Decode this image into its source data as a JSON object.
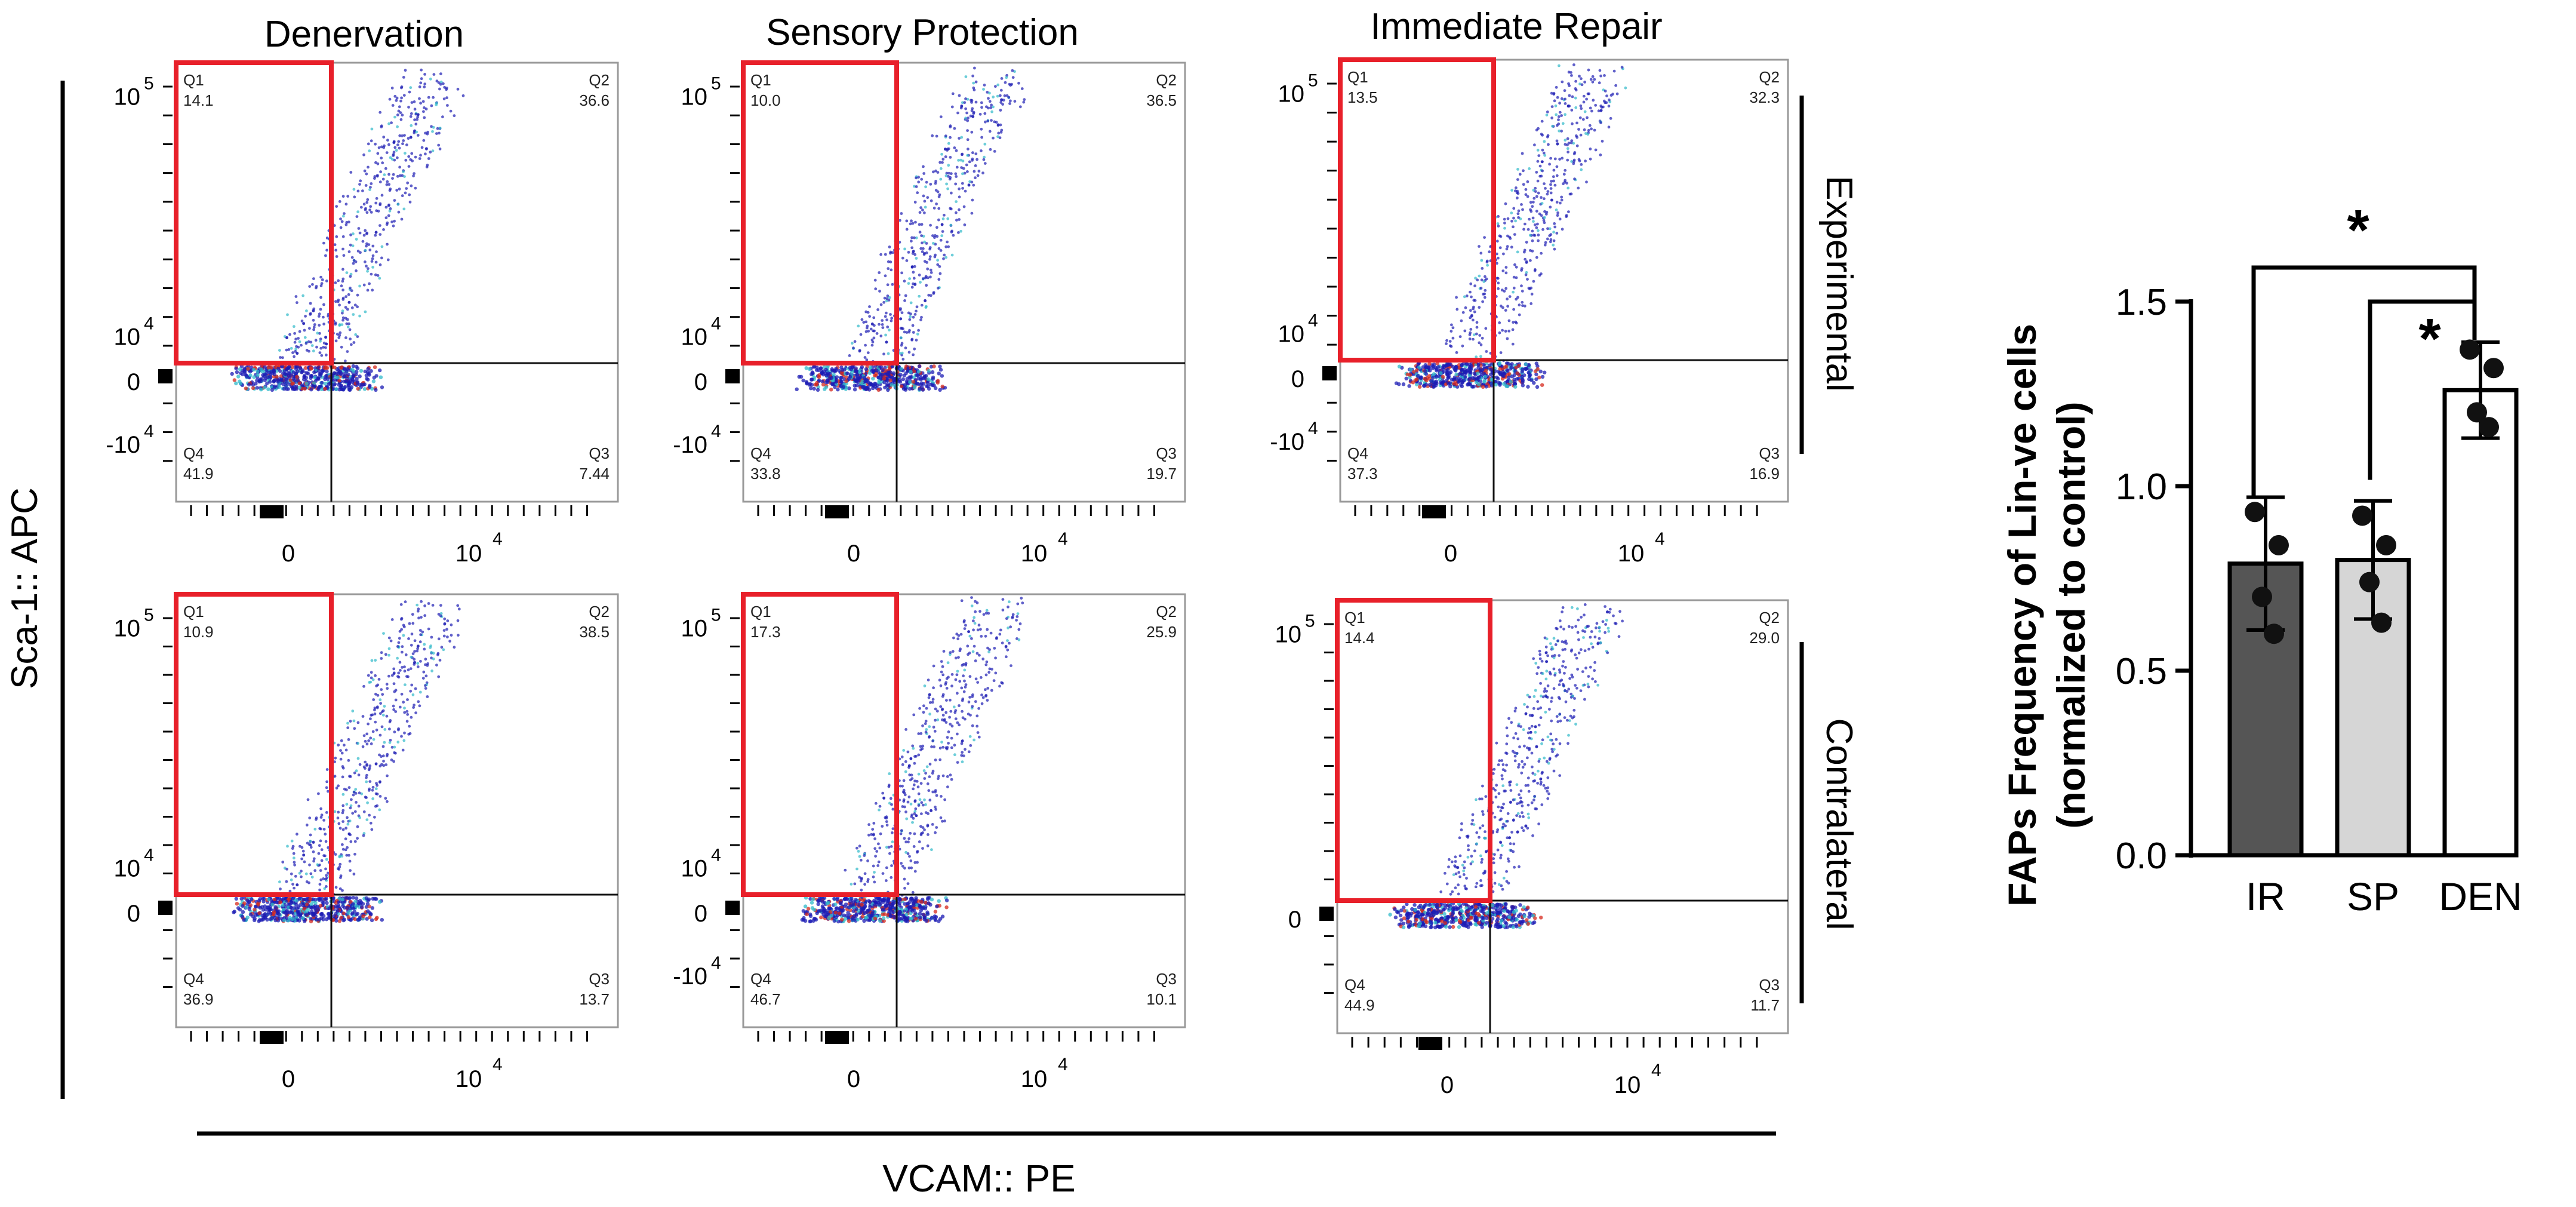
{
  "labels": {
    "columns": [
      "Denervation",
      "Sensory Protection",
      "Immediate Repair"
    ],
    "rows": [
      "Experimental",
      "Contralateral"
    ],
    "y_axis": "Sca-1:: APC",
    "x_axis": "VCAM:: PE"
  },
  "colors": {
    "gate": "#e8202a",
    "bar_ir": "#555555",
    "bar_sp": "#d6d6d6",
    "bar_den": "#ffffff",
    "dot_low": "#1c1cb4",
    "dot_mid": "#2fb9c9",
    "dot_high": "#d62a1d"
  },
  "chart_data": [
    {
      "type": "scatter",
      "column": "Denervation",
      "row": "Experimental",
      "x_ticks": [
        "0",
        "10 4"
      ],
      "y_ticks": [
        "10 5",
        "10 4",
        "0",
        "-10 4"
      ],
      "quadrants": [
        {
          "name": "Q1",
          "value": "14.1"
        },
        {
          "name": "Q2",
          "value": "36.6"
        },
        {
          "name": "Q3",
          "value": "7.44"
        },
        {
          "name": "Q4",
          "value": "41.9"
        }
      ]
    },
    {
      "type": "scatter",
      "column": "Sensory Protection",
      "row": "Experimental",
      "x_ticks": [
        "0",
        "10 4"
      ],
      "y_ticks": [
        "10 5",
        "10 4",
        "0",
        "-10 4"
      ],
      "quadrants": [
        {
          "name": "Q1",
          "value": "10.0"
        },
        {
          "name": "Q2",
          "value": "36.5"
        },
        {
          "name": "Q3",
          "value": "19.7"
        },
        {
          "name": "Q4",
          "value": "33.8"
        }
      ]
    },
    {
      "type": "scatter",
      "column": "Immediate Repair",
      "row": "Experimental",
      "x_ticks": [
        "0",
        "10 4"
      ],
      "y_ticks": [
        "10 5",
        "10 4",
        "0",
        "-10 4"
      ],
      "quadrants": [
        {
          "name": "Q1",
          "value": "13.5"
        },
        {
          "name": "Q2",
          "value": "32.3"
        },
        {
          "name": "Q3",
          "value": "16.9"
        },
        {
          "name": "Q4",
          "value": "37.3"
        }
      ]
    },
    {
      "type": "scatter",
      "column": "Denervation",
      "row": "Contralateral",
      "x_ticks": [
        "0",
        "10 4"
      ],
      "y_ticks": [
        "10 5",
        "10 4",
        "0"
      ],
      "quadrants": [
        {
          "name": "Q1",
          "value": "10.9"
        },
        {
          "name": "Q2",
          "value": "38.5"
        },
        {
          "name": "Q3",
          "value": "13.7"
        },
        {
          "name": "Q4",
          "value": "36.9"
        }
      ]
    },
    {
      "type": "scatter",
      "column": "Sensory Protection",
      "row": "Contralateral",
      "x_ticks": [
        "0",
        "10 4"
      ],
      "y_ticks": [
        "10 5",
        "10 4",
        "0",
        "-10 4"
      ],
      "quadrants": [
        {
          "name": "Q1",
          "value": "17.3"
        },
        {
          "name": "Q2",
          "value": "25.9"
        },
        {
          "name": "Q3",
          "value": "10.1"
        },
        {
          "name": "Q4",
          "value": "46.7"
        }
      ]
    },
    {
      "type": "scatter",
      "column": "Immediate Repair",
      "row": "Contralateral",
      "x_ticks": [
        "0",
        "10 4"
      ],
      "y_ticks": [
        "10 5",
        "0"
      ],
      "quadrants": [
        {
          "name": "Q1",
          "value": "14.4"
        },
        {
          "name": "Q2",
          "value": "29.0"
        },
        {
          "name": "Q3",
          "value": "11.7"
        },
        {
          "name": "Q4",
          "value": "44.9"
        }
      ]
    },
    {
      "type": "bar",
      "title": "",
      "ylabel": "FAPs Frequency of Lin-ve cells (normalized to control)",
      "ylabel_lines": [
        "FAPs Frequency of Lin-ve cells",
        "(normalized to control)"
      ],
      "categories": [
        "IR",
        "SP",
        "DEN"
      ],
      "values": [
        0.79,
        0.8,
        1.26
      ],
      "error": [
        0.18,
        0.16,
        0.13
      ],
      "points": [
        [
          0.93,
          0.84,
          0.7,
          0.6
        ],
        [
          0.92,
          0.84,
          0.74,
          0.63
        ],
        [
          1.37,
          1.32,
          1.2,
          1.16
        ]
      ],
      "ylim": [
        0,
        1.5
      ],
      "yticks": [
        "0.0",
        "0.5",
        "1.0",
        "1.5"
      ],
      "significance": [
        "*",
        "*"
      ]
    }
  ]
}
